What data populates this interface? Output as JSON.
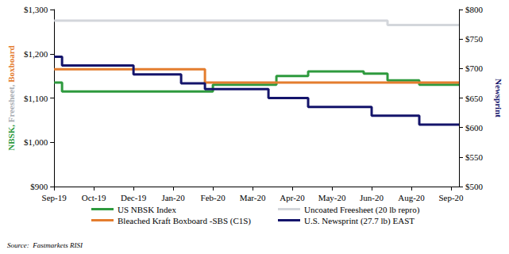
{
  "chart_data": {
    "type": "line",
    "y_label": "NBSK, Freesheet, Boxboard",
    "y2_label": "Newsprint",
    "source": "Source:  Fastmarkets RISI",
    "categories": [
      "Sep-19",
      null,
      null,
      null,
      null,
      "Oct-19",
      null,
      null,
      null,
      null,
      "Dec-19",
      null,
      null,
      null,
      null,
      "Jan-20",
      null,
      null,
      null,
      null,
      "Feb-20",
      null,
      null,
      null,
      null,
      "Mar-20",
      null,
      null,
      null,
      null,
      "Apr-20",
      null,
      null,
      null,
      null,
      "May-20",
      null,
      null,
      null,
      null,
      "Jun-20",
      null,
      null,
      null,
      null,
      "Aug-20",
      null,
      null,
      null,
      null,
      "Sep-20",
      null
    ],
    "ylim": [
      900,
      1300
    ],
    "yticks": [
      {
        "value": 900,
        "label": "$900"
      },
      {
        "value": 1000,
        "label": "$1,000"
      },
      {
        "value": 1100,
        "label": "$1,100"
      },
      {
        "value": 1200,
        "label": "$1,200"
      },
      {
        "value": 1300,
        "label": "$1,300"
      }
    ],
    "y2lim": [
      500,
      800
    ],
    "y2ticks": [
      {
        "value": 500,
        "label": "$500"
      },
      {
        "value": 550,
        "label": "$550"
      },
      {
        "value": 600,
        "label": "$600"
      },
      {
        "value": 650,
        "label": "$650"
      },
      {
        "value": 700,
        "label": "$700"
      },
      {
        "value": 750,
        "label": "$750"
      },
      {
        "value": 800,
        "label": "$800"
      }
    ],
    "grid": false,
    "legend": "bottom",
    "series": [
      {
        "name": "US NBSK Index",
        "color": "#2e9a3e",
        "line_style": "step",
        "values": [
          1135,
          1115,
          1115,
          1115,
          1115,
          1115,
          1115,
          1115,
          1115,
          1115,
          1115,
          1115,
          1115,
          1115,
          1115,
          1115,
          1115,
          1115,
          1115,
          1115,
          1130,
          1130,
          1130,
          1130,
          1130,
          1130,
          1130,
          1130,
          1150,
          1150,
          1150,
          1150,
          1160,
          1160,
          1160,
          1160,
          1160,
          1160,
          1160,
          1155,
          1155,
          1155,
          1140,
          1140,
          1140,
          1140,
          1130,
          1130,
          1130,
          1130,
          1130,
          1130
        ]
      },
      {
        "name": "Uncoated Freesheet (20 lb repro)",
        "color": "#d3d6db",
        "line_style": "step",
        "values": [
          1275,
          1275,
          1275,
          1275,
          1275,
          1275,
          1275,
          1275,
          1275,
          1275,
          1275,
          1275,
          1275,
          1275,
          1275,
          1275,
          1275,
          1275,
          1275,
          1275,
          1275,
          1275,
          1275,
          1275,
          1275,
          1275,
          1275,
          1275,
          1275,
          1275,
          1275,
          1275,
          1275,
          1275,
          1275,
          1275,
          1275,
          1275,
          1275,
          1275,
          1275,
          1275,
          1265,
          1265,
          1265,
          1265,
          1265,
          1265,
          1265,
          1265,
          1265,
          1265
        ]
      },
      {
        "name": "Bleached Kraft Boxboard -SBS (C1S)",
        "color": "#e47d2e",
        "line_style": "step",
        "values": [
          1165,
          1165,
          1165,
          1165,
          1165,
          1165,
          1165,
          1165,
          1165,
          1165,
          1165,
          1165,
          1165,
          1165,
          1165,
          1165,
          1165,
          1165,
          1165,
          1135,
          1135,
          1135,
          1135,
          1135,
          1135,
          1135,
          1135,
          1135,
          1135,
          1135,
          1135,
          1135,
          1135,
          1135,
          1135,
          1135,
          1135,
          1135,
          1135,
          1135,
          1135,
          1135,
          1135,
          1135,
          1135,
          1135,
          1135,
          1135,
          1135,
          1135,
          1135,
          1135
        ]
      },
      {
        "name": "U.S. Newsprint (27.7 lb) EAST",
        "color": "#14146b",
        "line_style": "step",
        "axis": "y2",
        "values": [
          720,
          705,
          705,
          705,
          705,
          705,
          705,
          705,
          705,
          705,
          690,
          690,
          690,
          690,
          690,
          690,
          675,
          675,
          675,
          665,
          665,
          665,
          665,
          665,
          665,
          665,
          665,
          650,
          650,
          650,
          650,
          650,
          635,
          635,
          635,
          635,
          635,
          635,
          635,
          635,
          620,
          620,
          620,
          620,
          620,
          620,
          605,
          605,
          605,
          605,
          605,
          605
        ]
      }
    ]
  }
}
